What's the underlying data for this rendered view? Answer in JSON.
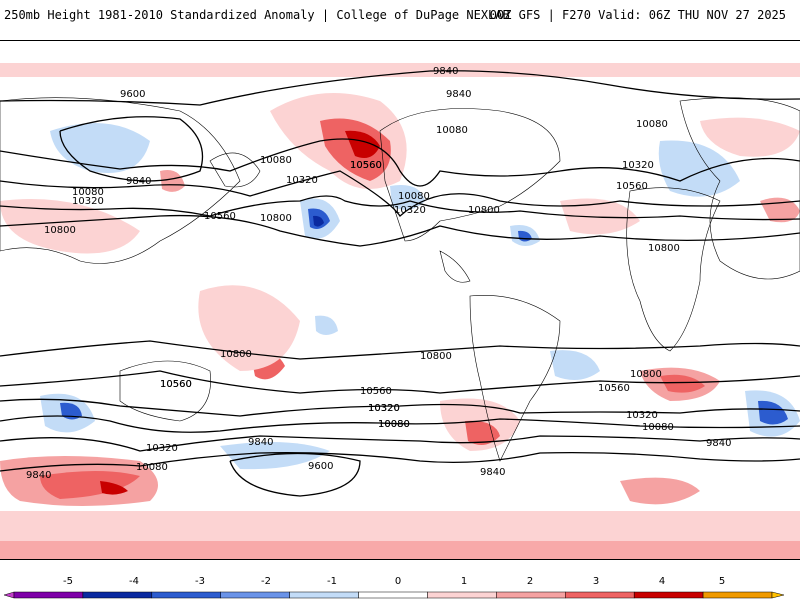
{
  "header": {
    "title": "250mb Height 1981-2010 Standardized Anomaly | College of DuPage NEXLAB",
    "run": "00Z GFS | F270 Valid: 06Z THU NOV 27 2025"
  },
  "map": {
    "contour_labels": [
      "9840",
      "9600",
      "10080",
      "9840",
      "10080",
      "10320",
      "10560",
      "10800",
      "10320",
      "10080",
      "10560",
      "10800",
      "10560",
      "10080",
      "10320",
      "10800",
      "10320",
      "10560",
      "10800",
      "10080",
      "9840",
      "10800",
      "10560",
      "10800",
      "10560",
      "10320",
      "10080",
      "9840",
      "9600",
      "10560",
      "10320",
      "10080",
      "9840",
      "10800",
      "10560",
      "10320",
      "10080",
      "9840",
      "10320",
      "10080",
      "9840"
    ]
  },
  "colorbar": {
    "ticks": [
      "-5",
      "-4",
      "-3",
      "-2",
      "-1",
      "0",
      "1",
      "2",
      "3",
      "4",
      "5"
    ],
    "colors": [
      "#c23fc9",
      "#7e00a8",
      "#0a2aa0",
      "#2c5ccf",
      "#6a93e8",
      "#c3dcf7",
      "#ffffff",
      "#fcd3d3",
      "#f5a2a2",
      "#ee6363",
      "#c80000",
      "#f09a00",
      "#ffc000"
    ]
  }
}
